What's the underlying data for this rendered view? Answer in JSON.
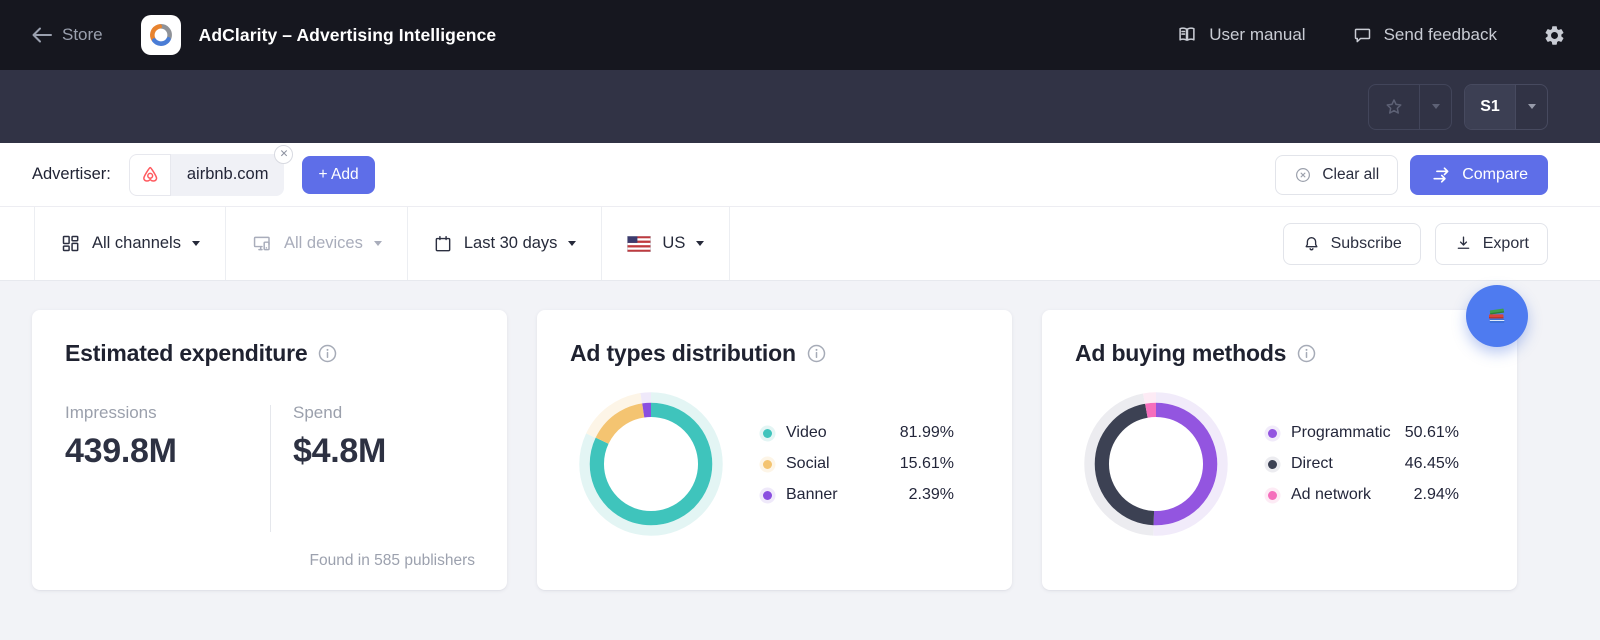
{
  "topbar": {
    "store_label": "Store",
    "app_title": "AdClarity – Advertising Intelligence",
    "user_manual_label": "User manual",
    "send_feedback_label": "Send feedback"
  },
  "subheader": {
    "preset_label": "S1"
  },
  "advertiser_bar": {
    "label": "Advertiser:",
    "advertiser": "airbnb.com",
    "remove_label": "✕",
    "add_label": "+ Add",
    "clear_all_label": "Clear all",
    "compare_label": "Compare"
  },
  "filter_bar": {
    "channels_label": "All channels",
    "devices_label": "All devices",
    "date_label": "Last 30 days",
    "country_label": "US",
    "subscribe_label": "Subscribe",
    "export_label": "Export"
  },
  "expenditure_card": {
    "title": "Estimated expenditure",
    "impressions_label": "Impressions",
    "impressions_value": "439.8M",
    "spend_label": "Spend",
    "spend_value": "$4.8M",
    "footer": "Found in 585 publishers"
  },
  "chart_data": [
    {
      "type": "donut",
      "title": "Ad types distribution",
      "legend_position": "right",
      "series": [
        {
          "label": "Video",
          "value": 81.99,
          "display": "81.99%",
          "color": "#3fc4bc",
          "halo": "#e3f5f4"
        },
        {
          "label": "Social",
          "value": 15.61,
          "display": "15.61%",
          "color": "#f4c471",
          "halo": "#fdf5e7"
        },
        {
          "label": "Banner",
          "value": 2.39,
          "display": "2.39%",
          "color": "#8a4fe0",
          "halo": "#efe9fa"
        }
      ]
    },
    {
      "type": "donut",
      "title": "Ad buying methods",
      "legend_position": "right",
      "series": [
        {
          "label": "Programmatic",
          "value": 50.61,
          "display": "50.61%",
          "color": "#9355e0",
          "halo": "#f1ebfa"
        },
        {
          "label": "Direct",
          "value": 46.45,
          "display": "46.45%",
          "color": "#3c4153",
          "halo": "#ececf0"
        },
        {
          "label": "Ad network",
          "value": 2.94,
          "display": "2.94%",
          "color": "#f56ebc",
          "halo": "#fdebf5"
        }
      ]
    }
  ],
  "colors": {
    "accent_blue": "#5e6ee8",
    "header_bg": "#16171f",
    "subheader_bg": "#313345",
    "airbnb_red": "#ff5a5f",
    "floating_button_blue": "#4e7bf0"
  }
}
